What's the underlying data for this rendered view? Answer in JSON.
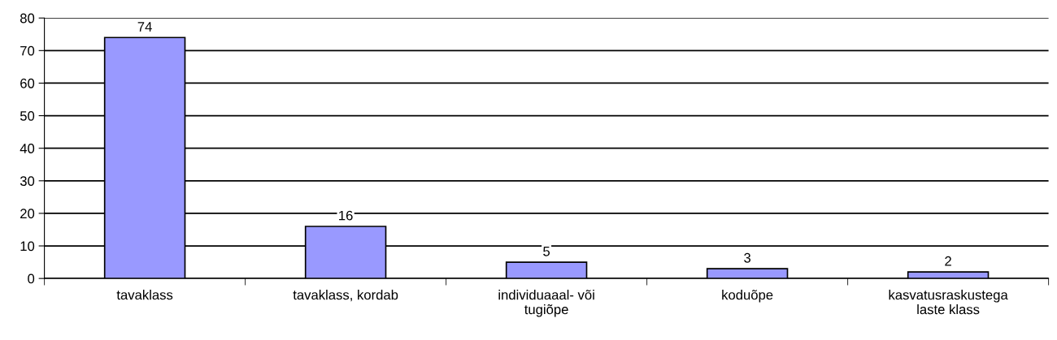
{
  "chart_data": {
    "type": "bar",
    "categories": [
      "tavaklass",
      "tavaklass, kordab",
      "individuaaal- või\ntugiõpe",
      "koduõpe",
      "kasvatusraskustega\nlaste klass"
    ],
    "values": [
      74,
      16,
      5,
      3,
      2
    ],
    "color": "#9999ff",
    "ylim": [
      0,
      80
    ],
    "yticks": [
      0,
      10,
      20,
      30,
      40,
      50,
      60,
      70,
      80
    ],
    "grid": "y",
    "data_labels": true
  }
}
